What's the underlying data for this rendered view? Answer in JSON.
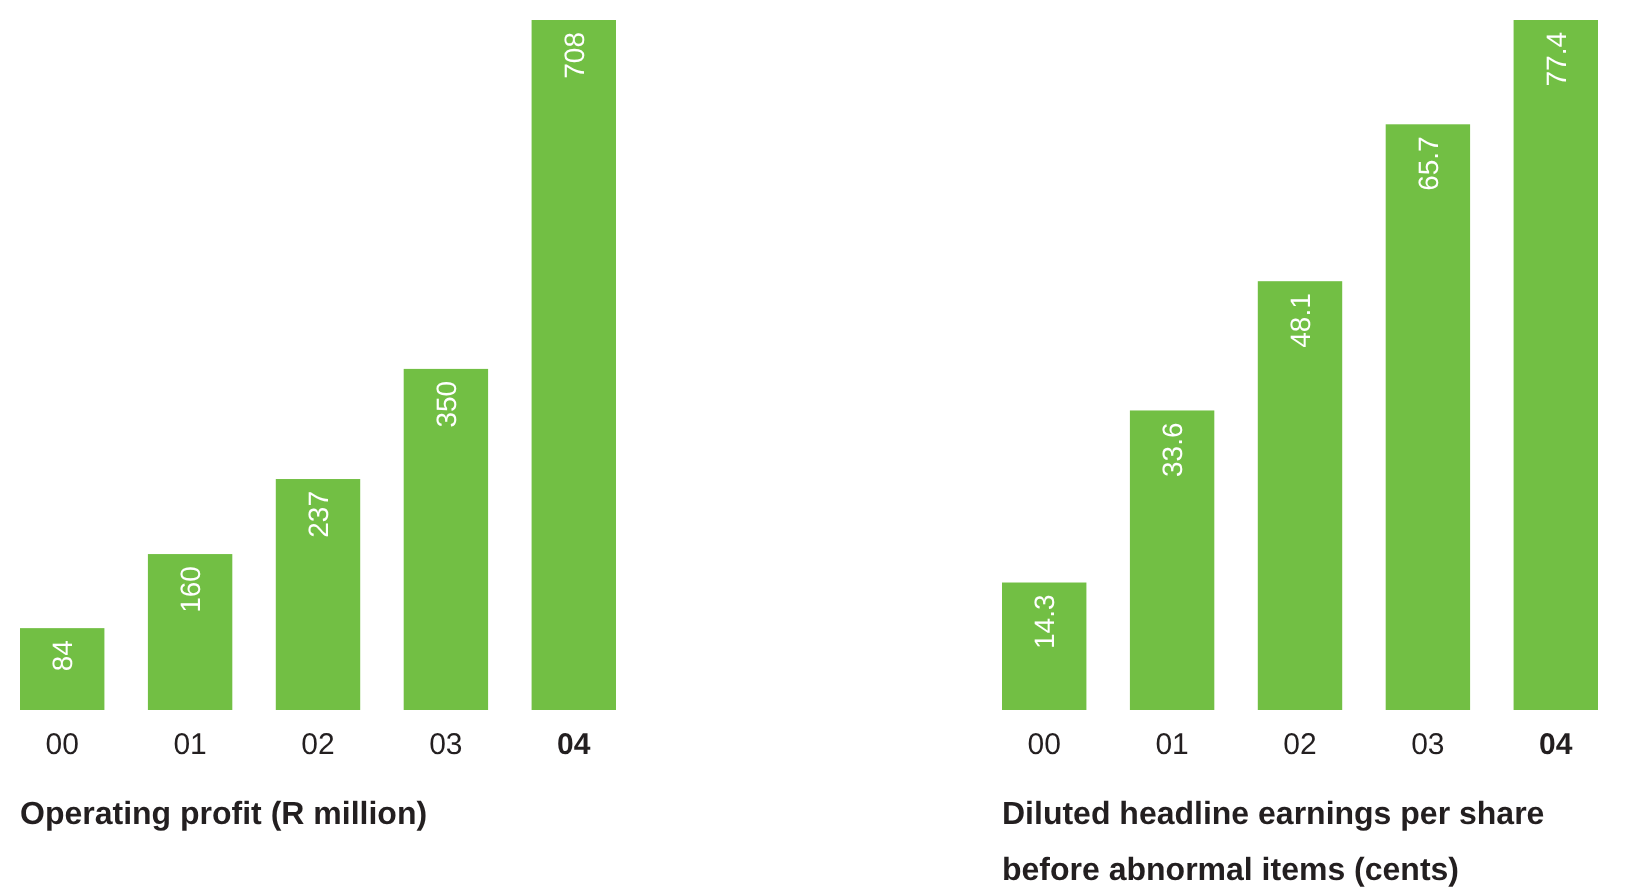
{
  "chart_data": [
    {
      "type": "bar",
      "title": "Operating profit (R million)",
      "categories": [
        "00",
        "01",
        "02",
        "03",
        "04"
      ],
      "values": [
        84,
        160,
        237,
        350,
        708
      ],
      "color": "#72bf44",
      "data_labels": true
    },
    {
      "type": "bar",
      "title": "Diluted headline earnings per share before abnormal items (cents)",
      "categories": [
        "00",
        "01",
        "02",
        "03",
        "04"
      ],
      "values": [
        14.3,
        33.6,
        48.1,
        65.7,
        77.4
      ],
      "color": "#72bf44",
      "data_labels": true
    }
  ]
}
